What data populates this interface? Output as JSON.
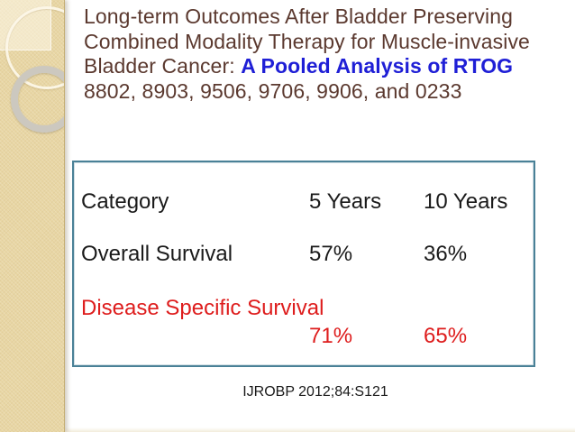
{
  "slide": {
    "title": {
      "part1": "Long-term Outcomes After Bladder Preserving Combined Modality Therapy for Muscle-invasive Bladder Cancer: ",
      "highlight": "A Pooled Analysis of RTOG",
      "part2": " 8802, 8903, 9506, 9706, 9906, and 0233"
    },
    "table": {
      "header": {
        "category": "Category",
        "col_5y": "5 Years",
        "col_10y": "10 Years"
      },
      "rows": [
        {
          "label": "Overall Survival",
          "y5": "57%",
          "y10": "36%"
        },
        {
          "label": "Disease Specific Survival",
          "y5": "71%",
          "y10": "65%"
        }
      ]
    },
    "citation": "IJROBP 2012;84:S121",
    "colors": {
      "title_text": "#5b392f",
      "title_highlight": "#1f1fd6",
      "emphasis_red": "#de1d1d",
      "table_border": "#4a8197",
      "sidebar_tan": "#e8d6a4"
    }
  }
}
